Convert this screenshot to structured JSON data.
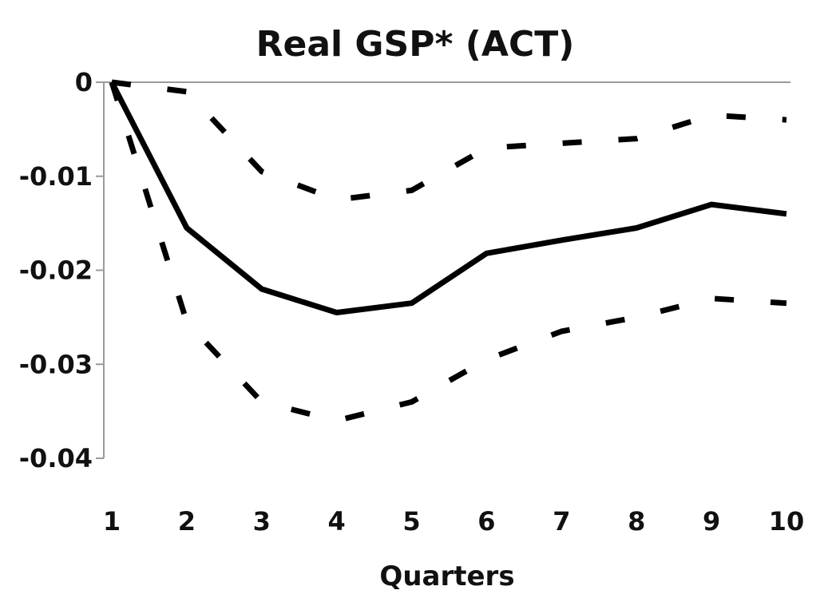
{
  "chart_data": {
    "type": "line",
    "title": "Real GSP* (ACT)",
    "xlabel": "Quarters",
    "ylabel": "",
    "x": [
      1,
      2,
      3,
      4,
      5,
      6,
      7,
      8,
      9,
      10
    ],
    "x_tick_labels": [
      "1",
      "2",
      "3",
      "4",
      "5",
      "6",
      "7",
      "8",
      "9",
      "10"
    ],
    "y_ticks": [
      0,
      -0.01,
      -0.02,
      -0.03,
      -0.04
    ],
    "y_tick_labels": [
      "0",
      "-0.01",
      "-0.02",
      "-0.03",
      "-0.04"
    ],
    "ylim": [
      -0.04,
      0
    ],
    "grid": false,
    "series": [
      {
        "style": "solid",
        "color": "#000000",
        "values": [
          0,
          -0.0155,
          -0.022,
          -0.0245,
          -0.0235,
          -0.0182,
          -0.0168,
          -0.0155,
          -0.013,
          -0.014
        ]
      },
      {
        "style": "dashed",
        "color": "#000000",
        "values": [
          0,
          -0.001,
          -0.0095,
          -0.0125,
          -0.0115,
          -0.007,
          -0.0065,
          -0.006,
          -0.0035,
          -0.004
        ]
      },
      {
        "style": "dashed",
        "color": "#000000",
        "values": [
          0,
          -0.0255,
          -0.034,
          -0.036,
          -0.034,
          -0.0295,
          -0.0265,
          -0.025,
          -0.023,
          -0.0235
        ]
      }
    ]
  }
}
